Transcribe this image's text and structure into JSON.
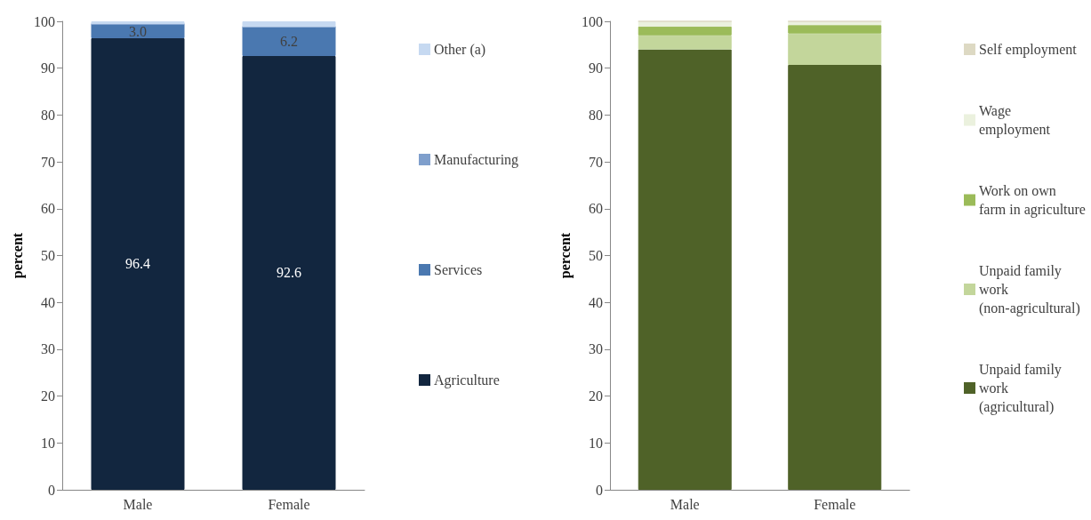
{
  "chart_data": [
    {
      "type": "bar",
      "stacked": true,
      "ylabel": "percent",
      "categories": [
        "Male",
        "Female"
      ],
      "ylim": [
        0,
        100
      ],
      "yticks": [
        0,
        10,
        20,
        30,
        40,
        50,
        60,
        70,
        80,
        90,
        100
      ],
      "grid": false,
      "legend": "right",
      "series": [
        {
          "name": "Agriculture",
          "color": "#12263f",
          "values": [
            96.4,
            92.6
          ],
          "value_labels": [
            "96.4",
            "92.6"
          ]
        },
        {
          "name": "Services",
          "color": "#4a78b0",
          "values": [
            3.0,
            6.2
          ],
          "value_labels": [
            "3.0",
            "6.2"
          ]
        },
        {
          "name": "Manufacturing",
          "color": "#7f9fcc",
          "values": [
            0,
            0
          ]
        },
        {
          "name": "Other (a)",
          "color": "#c6d9f1",
          "values": [
            0.6,
            1.2
          ]
        }
      ]
    },
    {
      "type": "bar",
      "stacked": true,
      "ylabel": "percent",
      "categories": [
        "Male",
        "Female"
      ],
      "ylim": [
        0,
        100
      ],
      "yticks": [
        0,
        10,
        20,
        30,
        40,
        50,
        60,
        70,
        80,
        90,
        100
      ],
      "grid": false,
      "legend": "right",
      "series": [
        {
          "name": "Unpaid family work (agricultural)",
          "color": "#4f6228",
          "values": [
            94.0,
            90.7
          ]
        },
        {
          "name": "Unpaid family work (non-agricultural)",
          "color": "#c3d69b",
          "values": [
            3.0,
            6.7
          ]
        },
        {
          "name": "Work on own farm in agriculture",
          "color": "#9bbb59",
          "values": [
            1.9,
            1.8
          ]
        },
        {
          "name": "Wage employment",
          "color": "#ebf1de",
          "values": [
            1.1,
            0.8
          ]
        },
        {
          "name": "Self employment",
          "color": "#ddd9c3",
          "values": [
            0,
            0
          ]
        }
      ]
    }
  ]
}
